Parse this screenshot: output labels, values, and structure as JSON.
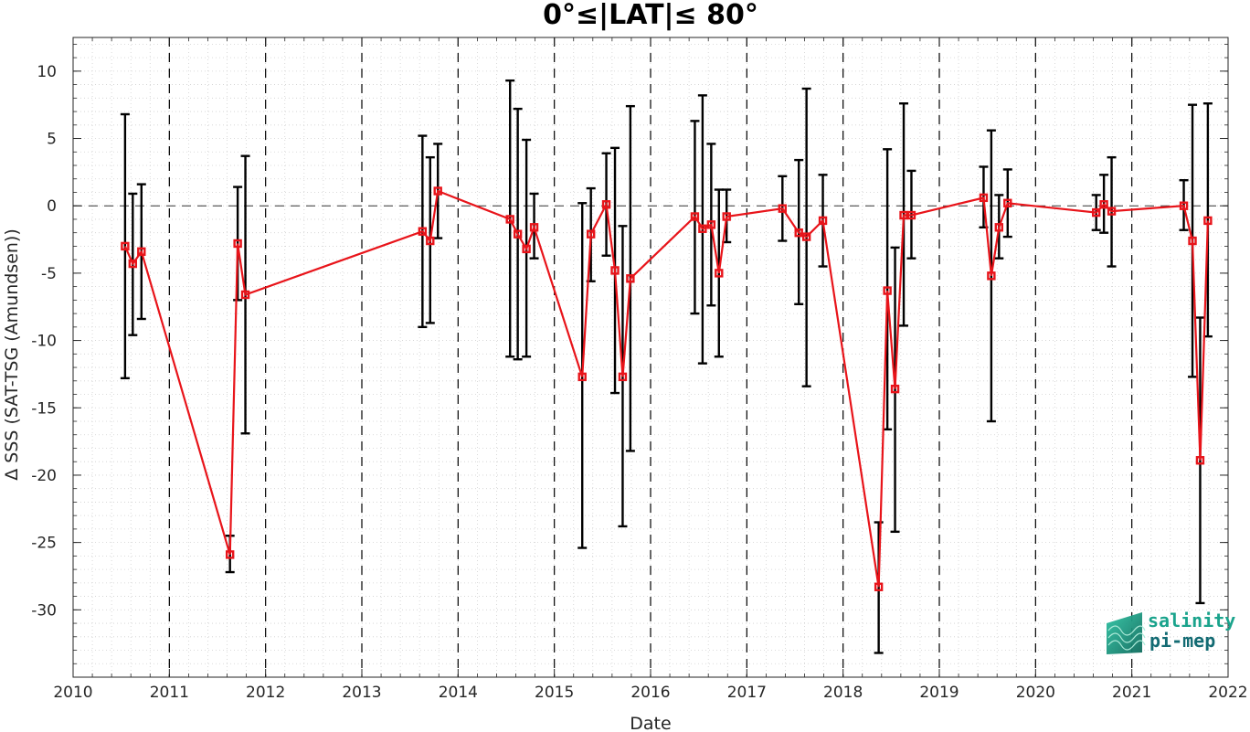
{
  "chart_data": {
    "type": "line",
    "title": "0°≤|LAT|≤ 80°",
    "xlabel": "Date",
    "ylabel": "Δ SSS (SAT-TSG (Amundsen))",
    "xlim": [
      2010,
      2022
    ],
    "ylim": [
      -35,
      12.5
    ],
    "xticks": [
      2010,
      2011,
      2012,
      2013,
      2014,
      2015,
      2016,
      2017,
      2018,
      2019,
      2020,
      2021,
      2022
    ],
    "xtick_labels": [
      "2010",
      "2011",
      "2012",
      "2013",
      "2014",
      "2015",
      "2016",
      "2017",
      "2018",
      "2019",
      "2020",
      "2021",
      "2022"
    ],
    "yticks": [
      10,
      5,
      0,
      -5,
      -10,
      -15,
      -20,
      -25,
      -30
    ],
    "ytick_labels": [
      "10",
      "5",
      "0",
      "-5",
      "-10",
      "-15",
      "-20",
      "-25",
      "-30"
    ],
    "grid": "minor dotted",
    "reference_line": 0,
    "year_boundaries_dashed": true,
    "series": [
      {
        "color": "#e8141a",
        "marker": "square",
        "errorbar_color": "#000000",
        "points": [
          {
            "x": 2010.54,
            "y": -3.0,
            "lo": -12.8,
            "hi": 6.8
          },
          {
            "x": 2010.62,
            "y": -4.3,
            "lo": -9.6,
            "hi": 0.9
          },
          {
            "x": 2010.71,
            "y": -3.4,
            "lo": -8.4,
            "hi": 1.6
          },
          {
            "x": 2011.63,
            "y": -25.9,
            "lo": -27.2,
            "hi": -24.5
          },
          {
            "x": 2011.71,
            "y": -2.8,
            "lo": -7.0,
            "hi": 1.4
          },
          {
            "x": 2011.79,
            "y": -6.6,
            "lo": -16.9,
            "hi": 3.7
          },
          {
            "x": 2013.63,
            "y": -1.9,
            "lo": -9.0,
            "hi": 5.2
          },
          {
            "x": 2013.71,
            "y": -2.6,
            "lo": -8.7,
            "hi": 3.6
          },
          {
            "x": 2013.79,
            "y": 1.1,
            "lo": -2.4,
            "hi": 4.6
          },
          {
            "x": 2014.54,
            "y": -1.0,
            "lo": -11.2,
            "hi": 9.3
          },
          {
            "x": 2014.62,
            "y": -2.1,
            "lo": -11.4,
            "hi": 7.2
          },
          {
            "x": 2014.71,
            "y": -3.2,
            "lo": -11.2,
            "hi": 4.9
          },
          {
            "x": 2014.79,
            "y": -1.6,
            "lo": -3.9,
            "hi": 0.9
          },
          {
            "x": 2015.29,
            "y": -12.7,
            "lo": -25.4,
            "hi": 0.2
          },
          {
            "x": 2015.38,
            "y": -2.1,
            "lo": -5.6,
            "hi": 1.3
          },
          {
            "x": 2015.54,
            "y": 0.1,
            "lo": -3.7,
            "hi": 3.9
          },
          {
            "x": 2015.63,
            "y": -4.8,
            "lo": -13.9,
            "hi": 4.3
          },
          {
            "x": 2015.71,
            "y": -12.7,
            "lo": -23.8,
            "hi": -1.5
          },
          {
            "x": 2015.79,
            "y": -5.4,
            "lo": -18.2,
            "hi": 7.4
          },
          {
            "x": 2016.46,
            "y": -0.8,
            "lo": -8.0,
            "hi": 6.3
          },
          {
            "x": 2016.54,
            "y": -1.7,
            "lo": -11.7,
            "hi": 8.2
          },
          {
            "x": 2016.63,
            "y": -1.4,
            "lo": -7.4,
            "hi": 4.6
          },
          {
            "x": 2016.71,
            "y": -5.0,
            "lo": -11.2,
            "hi": 1.2
          },
          {
            "x": 2016.79,
            "y": -0.8,
            "lo": -2.7,
            "hi": 1.2
          },
          {
            "x": 2017.37,
            "y": -0.2,
            "lo": -2.6,
            "hi": 2.2
          },
          {
            "x": 2017.54,
            "y": -2.0,
            "lo": -7.3,
            "hi": 3.4
          },
          {
            "x": 2017.62,
            "y": -2.3,
            "lo": -13.4,
            "hi": 8.7
          },
          {
            "x": 2017.79,
            "y": -1.1,
            "lo": -4.5,
            "hi": 2.3
          },
          {
            "x": 2018.37,
            "y": -28.3,
            "lo": -33.2,
            "hi": -23.5
          },
          {
            "x": 2018.46,
            "y": -6.3,
            "lo": -16.6,
            "hi": 4.2
          },
          {
            "x": 2018.54,
            "y": -13.6,
            "lo": -24.2,
            "hi": -3.1
          },
          {
            "x": 2018.63,
            "y": -0.7,
            "lo": -8.9,
            "hi": 7.6
          },
          {
            "x": 2018.71,
            "y": -0.7,
            "lo": -3.9,
            "hi": 2.6
          },
          {
            "x": 2019.46,
            "y": 0.6,
            "lo": -1.6,
            "hi": 2.9
          },
          {
            "x": 2019.54,
            "y": -5.2,
            "lo": -16.0,
            "hi": 5.6
          },
          {
            "x": 2019.62,
            "y": -1.6,
            "lo": -3.9,
            "hi": 0.8
          },
          {
            "x": 2019.71,
            "y": 0.2,
            "lo": -2.3,
            "hi": 2.7
          },
          {
            "x": 2020.63,
            "y": -0.5,
            "lo": -1.8,
            "hi": 0.8
          },
          {
            "x": 2020.71,
            "y": 0.1,
            "lo": -2.0,
            "hi": 2.3
          },
          {
            "x": 2020.79,
            "y": -0.4,
            "lo": -4.5,
            "hi": 3.6
          },
          {
            "x": 2021.54,
            "y": 0.0,
            "lo": -1.8,
            "hi": 1.9
          },
          {
            "x": 2021.63,
            "y": -2.6,
            "lo": -12.7,
            "hi": 7.5
          },
          {
            "x": 2021.71,
            "y": -18.9,
            "lo": -29.5,
            "hi": -8.3
          },
          {
            "x": 2021.79,
            "y": -1.1,
            "lo": -9.7,
            "hi": 7.6
          }
        ]
      }
    ]
  },
  "logo": {
    "line1": "salinity",
    "line2": "pi-mep",
    "color_line1": "#1aa38c",
    "color_line2": "#136b73"
  }
}
